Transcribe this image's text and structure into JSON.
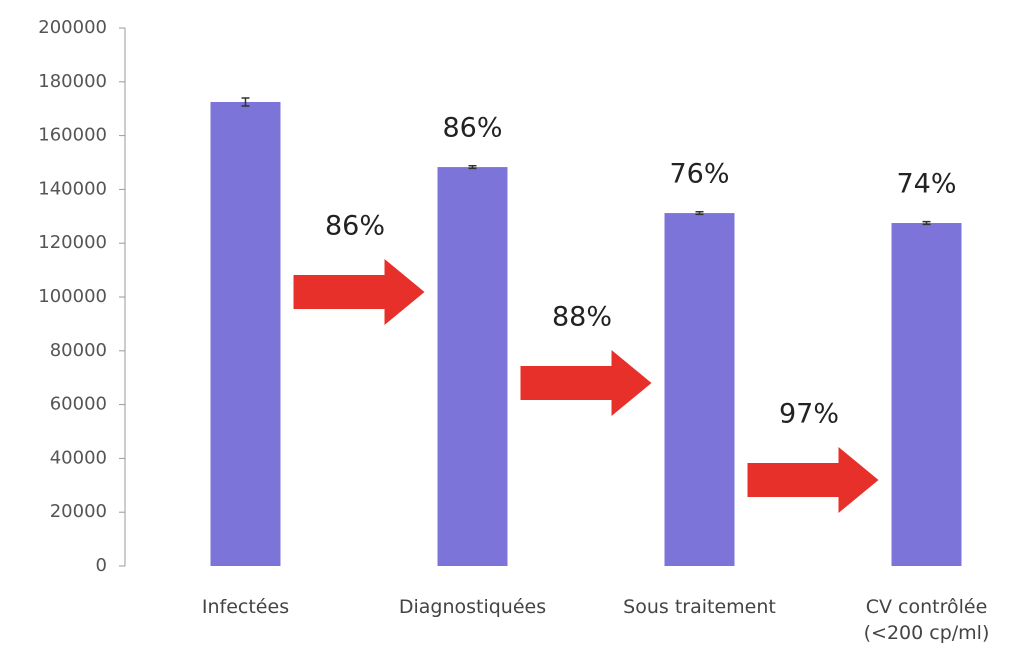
{
  "chart_data": {
    "type": "bar",
    "categories": [
      "Infectées",
      "Diagnostiquées",
      "Sous traitement",
      "CV contrôlée\n(<200 cp/ml)"
    ],
    "values": [
      172500,
      148300,
      131200,
      127500
    ],
    "errors": [
      1500,
      500,
      500,
      500
    ],
    "color": "#7c74d8",
    "ylim": [
      0,
      200000
    ],
    "yticks": [
      0,
      20000,
      40000,
      60000,
      80000,
      100000,
      120000,
      140000,
      160000,
      180000,
      200000
    ],
    "bar_annotations": [
      "86%",
      "76%",
      "74%"
    ],
    "arrow_annotations": [
      "86%",
      "88%",
      "97%"
    ],
    "arrow_color": "#e8302a"
  }
}
